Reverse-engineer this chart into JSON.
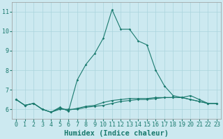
{
  "xlabel": "Humidex (Indice chaleur)",
  "ylabel": "",
  "background_color": "#cce9f0",
  "grid_color": "#aad4dd",
  "line_color": "#1a7a6e",
  "xlim": [
    -0.5,
    23.5
  ],
  "ylim": [
    5.5,
    11.5
  ],
  "yticks": [
    6,
    7,
    8,
    9,
    10,
    11
  ],
  "xticks": [
    0,
    1,
    2,
    3,
    4,
    5,
    6,
    7,
    8,
    9,
    10,
    11,
    12,
    13,
    14,
    15,
    16,
    17,
    18,
    19,
    20,
    21,
    22,
    23
  ],
  "series1_x": [
    0,
    1,
    2,
    3,
    4,
    5,
    6,
    7,
    8,
    9,
    10,
    11,
    12,
    13,
    14,
    15,
    16,
    17,
    18,
    19,
    20,
    21,
    22,
    23
  ],
  "series1_y": [
    6.5,
    6.2,
    6.3,
    6.0,
    5.85,
    6.0,
    6.0,
    6.0,
    6.1,
    6.15,
    6.2,
    6.3,
    6.4,
    6.45,
    6.5,
    6.5,
    6.55,
    6.6,
    6.6,
    6.6,
    6.5,
    6.4,
    6.3,
    6.3
  ],
  "series2_x": [
    0,
    1,
    2,
    3,
    4,
    5,
    6,
    7,
    8,
    9,
    10,
    11,
    12,
    13,
    14,
    15,
    16,
    17,
    18,
    19,
    20,
    21,
    22,
    23
  ],
  "series2_y": [
    6.5,
    6.2,
    6.3,
    6.0,
    5.85,
    6.05,
    5.95,
    6.05,
    6.15,
    6.2,
    6.35,
    6.45,
    6.5,
    6.55,
    6.55,
    6.55,
    6.6,
    6.6,
    6.6,
    6.6,
    6.5,
    6.4,
    6.3,
    6.3
  ],
  "series3_x": [
    0,
    1,
    2,
    3,
    4,
    5,
    6,
    7,
    8,
    9,
    10,
    11,
    12,
    13,
    14,
    15,
    16,
    17,
    18,
    19,
    20,
    21,
    22,
    23
  ],
  "series3_y": [
    6.5,
    6.2,
    6.3,
    6.0,
    5.85,
    6.1,
    5.9,
    7.5,
    8.3,
    8.85,
    9.65,
    11.1,
    10.1,
    10.1,
    9.5,
    9.3,
    8.0,
    7.2,
    6.7,
    6.6,
    6.7,
    6.5,
    6.3,
    6.3
  ],
  "tick_fontsize": 6,
  "label_fontsize": 7.5
}
